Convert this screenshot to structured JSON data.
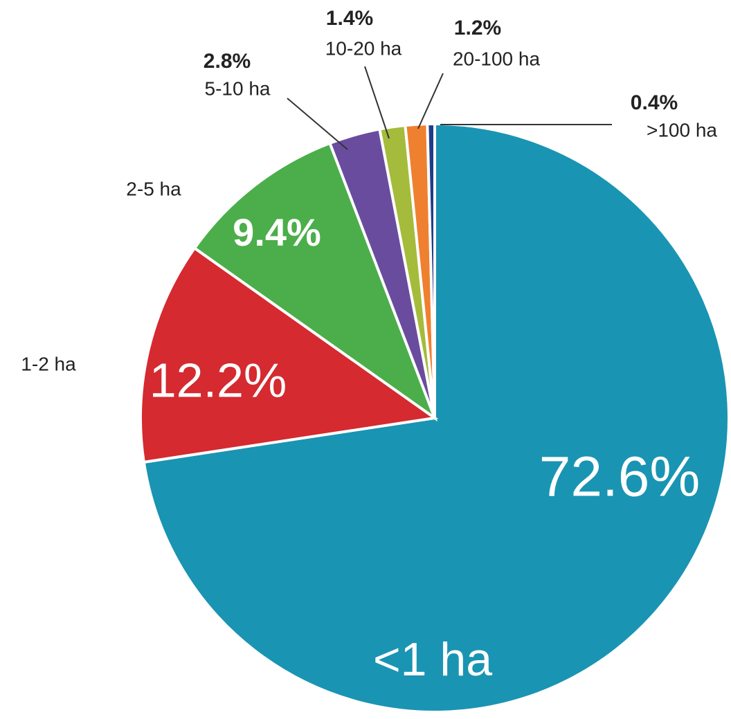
{
  "chart_data": {
    "type": "pie",
    "categories": [
      "<1 ha",
      "1-2 ha",
      "2-5 ha",
      "5-10 ha",
      "10-20 ha",
      "20-100 ha",
      ">100 ha"
    ],
    "values": [
      72.6,
      12.2,
      9.4,
      2.8,
      1.4,
      1.2,
      0.4
    ],
    "value_labels": [
      "72.6%",
      "12.2%",
      "9.4%",
      "2.8%",
      "1.4%",
      "1.2%",
      "0.4%"
    ],
    "colors": [
      "#1a94b3",
      "#d42a30",
      "#4bae4a",
      "#6a4c9f",
      "#a5bb3b",
      "#ef8030",
      "#1f3c8a"
    ]
  }
}
